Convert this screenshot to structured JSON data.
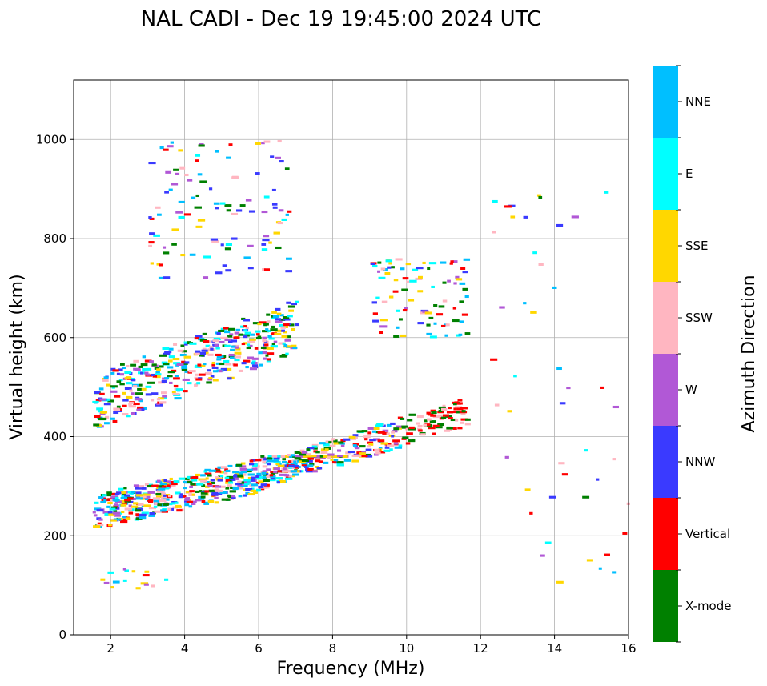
{
  "chart_data": {
    "type": "scatter",
    "title": "NAL CADI - Dec 19 19:45:00 2024 UTC",
    "xlabel": "Frequency (MHz)",
    "ylabel": "Virtual height (km)",
    "xlim": [
      1,
      16
    ],
    "ylim": [
      0,
      1120
    ],
    "xticks": [
      2,
      4,
      6,
      8,
      10,
      12,
      14,
      16
    ],
    "yticks": [
      0,
      200,
      400,
      600,
      800,
      1000
    ],
    "grid": true,
    "colorbar": {
      "label": "Azimuth Direction",
      "categories": [
        {
          "name": "X-mode",
          "color": "#008000"
        },
        {
          "name": "Vertical",
          "color": "#ff0000"
        },
        {
          "name": "NNW",
          "color": "#3a3aff"
        },
        {
          "name": "W",
          "color": "#b158d6"
        },
        {
          "name": "SSW",
          "color": "#ffb6c1"
        },
        {
          "name": "SSE",
          "color": "#ffd700"
        },
        {
          "name": "E",
          "color": "#00ffff"
        },
        {
          "name": "NNE",
          "color": "#00bfff"
        }
      ]
    },
    "clusters": [
      {
        "name": "E-layer echo",
        "freq_range": [
          1.5,
          3.5
        ],
        "height_range": [
          90,
          135
        ],
        "count": 16
      },
      {
        "name": "F-layer trace",
        "freq_range": [
          1.5,
          8.3
        ],
        "height_range": [
          200,
          360
        ],
        "count": 650
      },
      {
        "name": "F-layer upper trace",
        "freq_range": [
          6.5,
          11.6
        ],
        "height_range": [
          330,
          500
        ],
        "count": 260
      },
      {
        "name": "Second-hop F echo",
        "freq_range": [
          1.5,
          7.0
        ],
        "height_range": [
          420,
          700
        ],
        "count": 420
      },
      {
        "name": "Third-hop scatter",
        "freq_range": [
          3.0,
          6.8
        ],
        "height_range": [
          720,
          1000
        ],
        "count": 110
      },
      {
        "name": "Second-hop upper",
        "freq_range": [
          9.0,
          11.6
        ],
        "height_range": [
          600,
          760
        ],
        "count": 90
      },
      {
        "name": "Sparse high-frequency echoes",
        "freq_range": [
          12.2,
          16.0
        ],
        "height_range": [
          90,
          900
        ],
        "count": 45
      }
    ]
  }
}
